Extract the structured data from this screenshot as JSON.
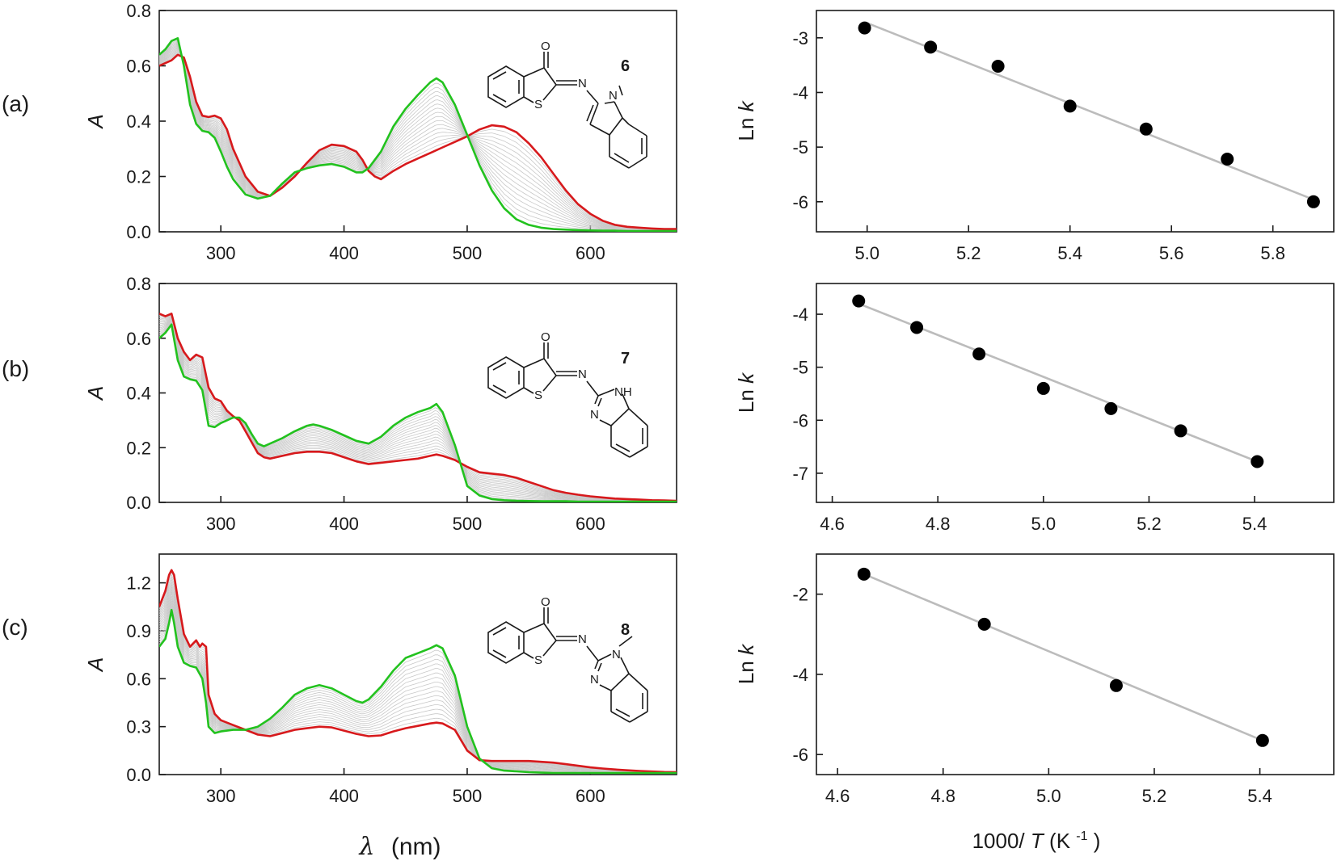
{
  "colors": {
    "final": "#d7191c",
    "initial": "#22c21e",
    "intermediate": "#c8c8c8",
    "fit": "#bcbcbc",
    "point": "#000000"
  },
  "figure": {
    "spectra_x_label": "λ",
    "spectra_x_unit": "(nm)",
    "arrhenius_x_label_prefix": "1000/",
    "arrhenius_x_label_var": "T",
    "arrhenius_x_label_unit_prefix": " (K",
    "arrhenius_x_label_unit_exp": "-1",
    "arrhenius_x_label_unit_suffix": ")"
  },
  "panels": [
    {
      "label": "(a)",
      "compound": "6",
      "substituent": "N-methylindol-2-yl",
      "atoms": {
        "carbonyl_o": "O",
        "sulfur": "S",
        "imine_n": "N",
        "ring_n": "N"
      }
    },
    {
      "label": "(b)",
      "compound": "7",
      "substituent": "benzimidazol-2-yl",
      "atoms": {
        "carbonyl_o": "O",
        "sulfur": "S",
        "imine_n": "N",
        "ring_n1": "NH",
        "ring_n2": "N"
      }
    },
    {
      "label": "(c)",
      "compound": "8",
      "substituent": "N-methylbenzimidazol-2-yl",
      "atoms": {
        "carbonyl_o": "O",
        "sulfur": "S",
        "imine_n": "N",
        "ring_n1": "N",
        "ring_n2": "N"
      }
    }
  ],
  "chart_data": [
    {
      "id": "spectra-a",
      "type": "line",
      "title": "",
      "xlabel": "λ (nm)",
      "ylabel": "A",
      "xlim": [
        250,
        670
      ],
      "ylim": [
        0,
        0.8
      ],
      "xticks": [
        300,
        400,
        500,
        600
      ],
      "yticks": [
        0.0,
        0.2,
        0.4,
        0.6,
        0.8
      ],
      "ytick_decimals": 1,
      "show_x_ticklabels": true,
      "intermediate_count": 16,
      "series": [
        {
          "name": "final",
          "color": "#d7191c",
          "x": [
            250,
            255,
            260,
            265,
            270,
            275,
            280,
            285,
            290,
            295,
            300,
            305,
            310,
            320,
            330,
            340,
            350,
            360,
            370,
            380,
            390,
            400,
            410,
            415,
            420,
            425,
            430,
            440,
            450,
            460,
            470,
            480,
            490,
            500,
            510,
            520,
            530,
            540,
            550,
            560,
            570,
            580,
            590,
            600,
            610,
            620,
            630,
            640,
            650,
            660,
            670
          ],
          "values": [
            0.6,
            0.61,
            0.62,
            0.64,
            0.63,
            0.56,
            0.47,
            0.42,
            0.415,
            0.42,
            0.41,
            0.37,
            0.3,
            0.2,
            0.145,
            0.13,
            0.16,
            0.2,
            0.25,
            0.295,
            0.315,
            0.31,
            0.29,
            0.26,
            0.22,
            0.2,
            0.19,
            0.22,
            0.245,
            0.265,
            0.285,
            0.305,
            0.325,
            0.345,
            0.37,
            0.385,
            0.38,
            0.36,
            0.32,
            0.27,
            0.21,
            0.15,
            0.1,
            0.065,
            0.04,
            0.025,
            0.018,
            0.015,
            0.012,
            0.01,
            0.01
          ]
        },
        {
          "name": "initial",
          "color": "#22c21e",
          "x": [
            250,
            255,
            260,
            265,
            270,
            275,
            280,
            285,
            290,
            295,
            300,
            305,
            310,
            320,
            330,
            340,
            350,
            360,
            370,
            380,
            390,
            400,
            410,
            415,
            420,
            430,
            440,
            450,
            460,
            470,
            475,
            480,
            490,
            500,
            510,
            520,
            530,
            540,
            550,
            560,
            570,
            580,
            590,
            600,
            610,
            620,
            630,
            640,
            650,
            660,
            670
          ],
          "values": [
            0.64,
            0.66,
            0.69,
            0.7,
            0.6,
            0.46,
            0.39,
            0.365,
            0.36,
            0.34,
            0.29,
            0.235,
            0.19,
            0.135,
            0.12,
            0.13,
            0.175,
            0.215,
            0.23,
            0.24,
            0.245,
            0.235,
            0.215,
            0.215,
            0.23,
            0.29,
            0.38,
            0.445,
            0.495,
            0.54,
            0.555,
            0.54,
            0.46,
            0.35,
            0.24,
            0.15,
            0.085,
            0.045,
            0.025,
            0.015,
            0.01,
            0.008,
            0.006,
            0.005,
            0.004,
            0.004,
            0.003,
            0.003,
            0.003,
            0.003,
            0.003
          ]
        }
      ]
    },
    {
      "id": "arrhenius-a",
      "type": "scatter",
      "xlabel": "1000/T (K-1)",
      "ylabel": "Ln k",
      "xlim": [
        4.9,
        5.92
      ],
      "ylim": [
        -6.55,
        -2.5
      ],
      "xticks": [
        5.0,
        5.2,
        5.4,
        5.6,
        5.8
      ],
      "yticks": [
        -6,
        -5,
        -4,
        -3
      ],
      "xtick_decimals": 1,
      "ytick_decimals": 0,
      "show_x_ticklabels": true,
      "x": [
        4.995,
        5.125,
        5.258,
        5.4,
        5.55,
        5.71,
        5.88
      ],
      "y": [
        -2.82,
        -3.17,
        -3.52,
        -4.25,
        -4.67,
        -5.22,
        -6.0
      ],
      "fit": {
        "x": [
          5.0,
          5.88
        ],
        "y": [
          -2.73,
          -5.96
        ]
      }
    },
    {
      "id": "spectra-b",
      "type": "line",
      "xlabel": "λ (nm)",
      "ylabel": "A",
      "xlim": [
        250,
        670
      ],
      "ylim": [
        0,
        0.8
      ],
      "xticks": [
        300,
        400,
        500,
        600
      ],
      "yticks": [
        0.0,
        0.2,
        0.4,
        0.6,
        0.8
      ],
      "ytick_decimals": 1,
      "show_x_ticklabels": true,
      "intermediate_count": 16,
      "series": [
        {
          "name": "final",
          "color": "#d7191c",
          "x": [
            250,
            255,
            260,
            265,
            270,
            275,
            280,
            285,
            290,
            295,
            300,
            305,
            310,
            315,
            320,
            325,
            330,
            335,
            340,
            350,
            360,
            370,
            380,
            390,
            400,
            410,
            420,
            430,
            440,
            450,
            460,
            470,
            475,
            480,
            490,
            500,
            510,
            520,
            530,
            540,
            550,
            560,
            570,
            580,
            590,
            600,
            610,
            620,
            630,
            640,
            650,
            660,
            670
          ],
          "values": [
            0.69,
            0.68,
            0.69,
            0.6,
            0.55,
            0.52,
            0.54,
            0.53,
            0.42,
            0.38,
            0.37,
            0.335,
            0.315,
            0.3,
            0.26,
            0.22,
            0.18,
            0.165,
            0.16,
            0.17,
            0.18,
            0.185,
            0.185,
            0.18,
            0.165,
            0.15,
            0.14,
            0.145,
            0.15,
            0.155,
            0.16,
            0.17,
            0.175,
            0.17,
            0.155,
            0.13,
            0.11,
            0.105,
            0.1,
            0.09,
            0.075,
            0.06,
            0.045,
            0.035,
            0.028,
            0.022,
            0.018,
            0.014,
            0.012,
            0.01,
            0.008,
            0.007,
            0.006
          ]
        },
        {
          "name": "initial",
          "color": "#22c21e",
          "x": [
            250,
            255,
            260,
            265,
            270,
            275,
            280,
            285,
            290,
            295,
            300,
            305,
            310,
            315,
            320,
            325,
            330,
            335,
            340,
            350,
            360,
            370,
            375,
            380,
            390,
            400,
            410,
            420,
            430,
            440,
            450,
            460,
            470,
            475,
            480,
            490,
            500,
            510,
            520,
            530,
            540,
            550,
            560,
            570,
            580,
            590,
            600,
            610,
            620,
            630,
            640,
            650,
            660,
            670
          ],
          "values": [
            0.6,
            0.62,
            0.65,
            0.52,
            0.46,
            0.45,
            0.445,
            0.41,
            0.28,
            0.275,
            0.29,
            0.3,
            0.31,
            0.31,
            0.29,
            0.25,
            0.215,
            0.205,
            0.215,
            0.235,
            0.26,
            0.28,
            0.285,
            0.28,
            0.265,
            0.245,
            0.225,
            0.215,
            0.24,
            0.28,
            0.31,
            0.33,
            0.345,
            0.36,
            0.33,
            0.21,
            0.06,
            0.025,
            0.012,
            0.008,
            0.006,
            0.005,
            0.004,
            0.004,
            0.004,
            0.003,
            0.003,
            0.003,
            0.003,
            0.003,
            0.003,
            0.003,
            0.003,
            0.003
          ]
        }
      ]
    },
    {
      "id": "arrhenius-b",
      "type": "scatter",
      "xlabel": "1000/T (K-1)",
      "ylabel": "Ln k",
      "xlim": [
        4.57,
        5.55
      ],
      "ylim": [
        -7.55,
        -3.42
      ],
      "xticks": [
        4.6,
        4.8,
        5.0,
        5.2,
        5.4
      ],
      "yticks": [
        -7,
        -6,
        -5,
        -4
      ],
      "xtick_decimals": 1,
      "ytick_decimals": 0,
      "show_x_ticklabels": true,
      "x": [
        4.65,
        4.76,
        4.878,
        5.0,
        5.128,
        5.26,
        5.405
      ],
      "y": [
        -3.75,
        -4.25,
        -4.75,
        -5.4,
        -5.78,
        -6.2,
        -6.78
      ],
      "fit": {
        "x": [
          4.65,
          5.405
        ],
        "y": [
          -3.8,
          -6.78
        ]
      }
    },
    {
      "id": "spectra-c",
      "type": "line",
      "xlabel": "λ (nm)",
      "ylabel": "A",
      "xlim": [
        250,
        670
      ],
      "ylim": [
        0,
        1.38
      ],
      "xticks": [
        300,
        400,
        500,
        600
      ],
      "yticks": [
        0.0,
        0.3,
        0.6,
        0.9,
        1.2
      ],
      "ytick_decimals": 1,
      "show_x_ticklabels": true,
      "intermediate_count": 16,
      "series": [
        {
          "name": "final",
          "color": "#d7191c",
          "x": [
            250,
            255,
            258,
            260,
            262,
            265,
            270,
            275,
            280,
            283,
            285,
            288,
            290,
            295,
            300,
            310,
            320,
            330,
            340,
            350,
            360,
            370,
            380,
            390,
            400,
            410,
            420,
            430,
            440,
            450,
            460,
            470,
            475,
            480,
            490,
            500,
            510,
            520,
            530,
            540,
            550,
            560,
            570,
            580,
            590,
            600,
            610,
            620,
            630,
            640,
            650,
            660,
            670
          ],
          "values": [
            1.05,
            1.15,
            1.25,
            1.28,
            1.25,
            1.1,
            0.88,
            0.8,
            0.84,
            0.8,
            0.82,
            0.8,
            0.5,
            0.38,
            0.34,
            0.31,
            0.28,
            0.25,
            0.24,
            0.26,
            0.28,
            0.29,
            0.3,
            0.295,
            0.275,
            0.255,
            0.24,
            0.245,
            0.27,
            0.29,
            0.305,
            0.32,
            0.325,
            0.32,
            0.28,
            0.15,
            0.09,
            0.085,
            0.085,
            0.085,
            0.085,
            0.08,
            0.075,
            0.065,
            0.055,
            0.045,
            0.038,
            0.032,
            0.027,
            0.023,
            0.019,
            0.016,
            0.015
          ]
        },
        {
          "name": "initial",
          "color": "#22c21e",
          "x": [
            250,
            255,
            258,
            260,
            262,
            265,
            270,
            275,
            280,
            285,
            288,
            290,
            295,
            300,
            310,
            320,
            330,
            340,
            350,
            360,
            370,
            380,
            390,
            400,
            410,
            415,
            420,
            430,
            440,
            450,
            460,
            470,
            475,
            480,
            490,
            500,
            510,
            520,
            530,
            540,
            550,
            560,
            570,
            580,
            590,
            600,
            610,
            620,
            630,
            640,
            650,
            660,
            670
          ],
          "values": [
            0.8,
            0.85,
            0.95,
            1.03,
            0.95,
            0.8,
            0.7,
            0.68,
            0.67,
            0.6,
            0.45,
            0.3,
            0.26,
            0.27,
            0.28,
            0.28,
            0.3,
            0.35,
            0.42,
            0.5,
            0.54,
            0.56,
            0.54,
            0.5,
            0.46,
            0.45,
            0.47,
            0.55,
            0.65,
            0.73,
            0.76,
            0.79,
            0.81,
            0.79,
            0.62,
            0.3,
            0.1,
            0.04,
            0.025,
            0.02,
            0.015,
            0.012,
            0.01,
            0.01,
            0.01,
            0.01,
            0.01,
            0.01,
            0.01,
            0.01,
            0.01,
            0.01,
            0.01
          ]
        }
      ]
    },
    {
      "id": "arrhenius-c",
      "type": "scatter",
      "xlabel": "1000/T (K-1)",
      "ylabel": "Ln k",
      "xlim": [
        4.56,
        5.54
      ],
      "ylim": [
        -6.5,
        -1.0
      ],
      "xticks": [
        4.6,
        4.8,
        5.0,
        5.2,
        5.4
      ],
      "yticks": [
        -6,
        -4,
        -2
      ],
      "xtick_decimals": 1,
      "ytick_decimals": 0,
      "show_x_ticklabels": true,
      "x": [
        4.65,
        4.878,
        5.128,
        5.405
      ],
      "y": [
        -1.5,
        -2.75,
        -4.28,
        -5.65
      ],
      "fit": {
        "x": [
          4.65,
          5.405
        ],
        "y": [
          -1.5,
          -5.65
        ]
      }
    }
  ]
}
